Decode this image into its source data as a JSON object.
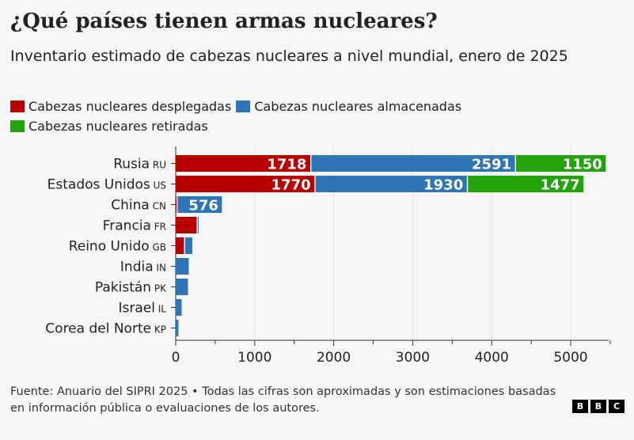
{
  "title": "¿Qué países tienen armas nucleares?",
  "subtitle": "Inventario estimado de cabezas nucleares a nivel mundial, enero de 2025",
  "footer": "Fuente: Anuario del SIPRI 2025 • Todas las cifras son aproximadas y son estimaciones basadas en información pública o evaluaciones de los autores.",
  "logo": [
    "B",
    "B",
    "C"
  ],
  "colors": {
    "deployed": "#b80000",
    "stored": "#2e75b8",
    "retired": "#22a20b"
  },
  "chart_data": {
    "type": "bar",
    "orientation": "horizontal-stacked",
    "title": "¿Qué países tienen armas nucleares?",
    "xlabel": "",
    "ylabel": "",
    "xlim": [
      0,
      5500
    ],
    "xticks": [
      0,
      1000,
      2000,
      3000,
      4000,
      5000
    ],
    "xtick_labels": [
      "0",
      "1000",
      "2000",
      "3000",
      "4000",
      "5000"
    ],
    "grid": true,
    "legend_position": "top",
    "categories": [
      "Rusia",
      "Estados Unidos",
      "China",
      "Francia",
      "Reino Unido",
      "India",
      "Pakistán",
      "Israel",
      "Corea del Norte"
    ],
    "codes": [
      "RU",
      "US",
      "CN",
      "FR",
      "GB",
      "IN",
      "PK",
      "IL",
      "KP"
    ],
    "series": [
      {
        "name": "Cabezas nucleares desplegadas",
        "key": "deployed",
        "values": [
          1718,
          1770,
          24,
          280,
          120,
          0,
          0,
          0,
          0
        ],
        "labeled": [
          true,
          true,
          false,
          false,
          false,
          false,
          false,
          false,
          false
        ]
      },
      {
        "name": "Cabezas nucleares almacenadas",
        "key": "stored",
        "values": [
          2591,
          1930,
          576,
          10,
          105,
          180,
          170,
          90,
          50
        ],
        "labeled": [
          true,
          true,
          true,
          false,
          false,
          false,
          false,
          false,
          false
        ]
      },
      {
        "name": "Cabezas nucleares retiradas",
        "key": "retired",
        "values": [
          1150,
          1477,
          0,
          0,
          0,
          0,
          0,
          0,
          0
        ],
        "labeled": [
          true,
          true,
          false,
          false,
          false,
          false,
          false,
          false,
          false
        ]
      }
    ]
  }
}
